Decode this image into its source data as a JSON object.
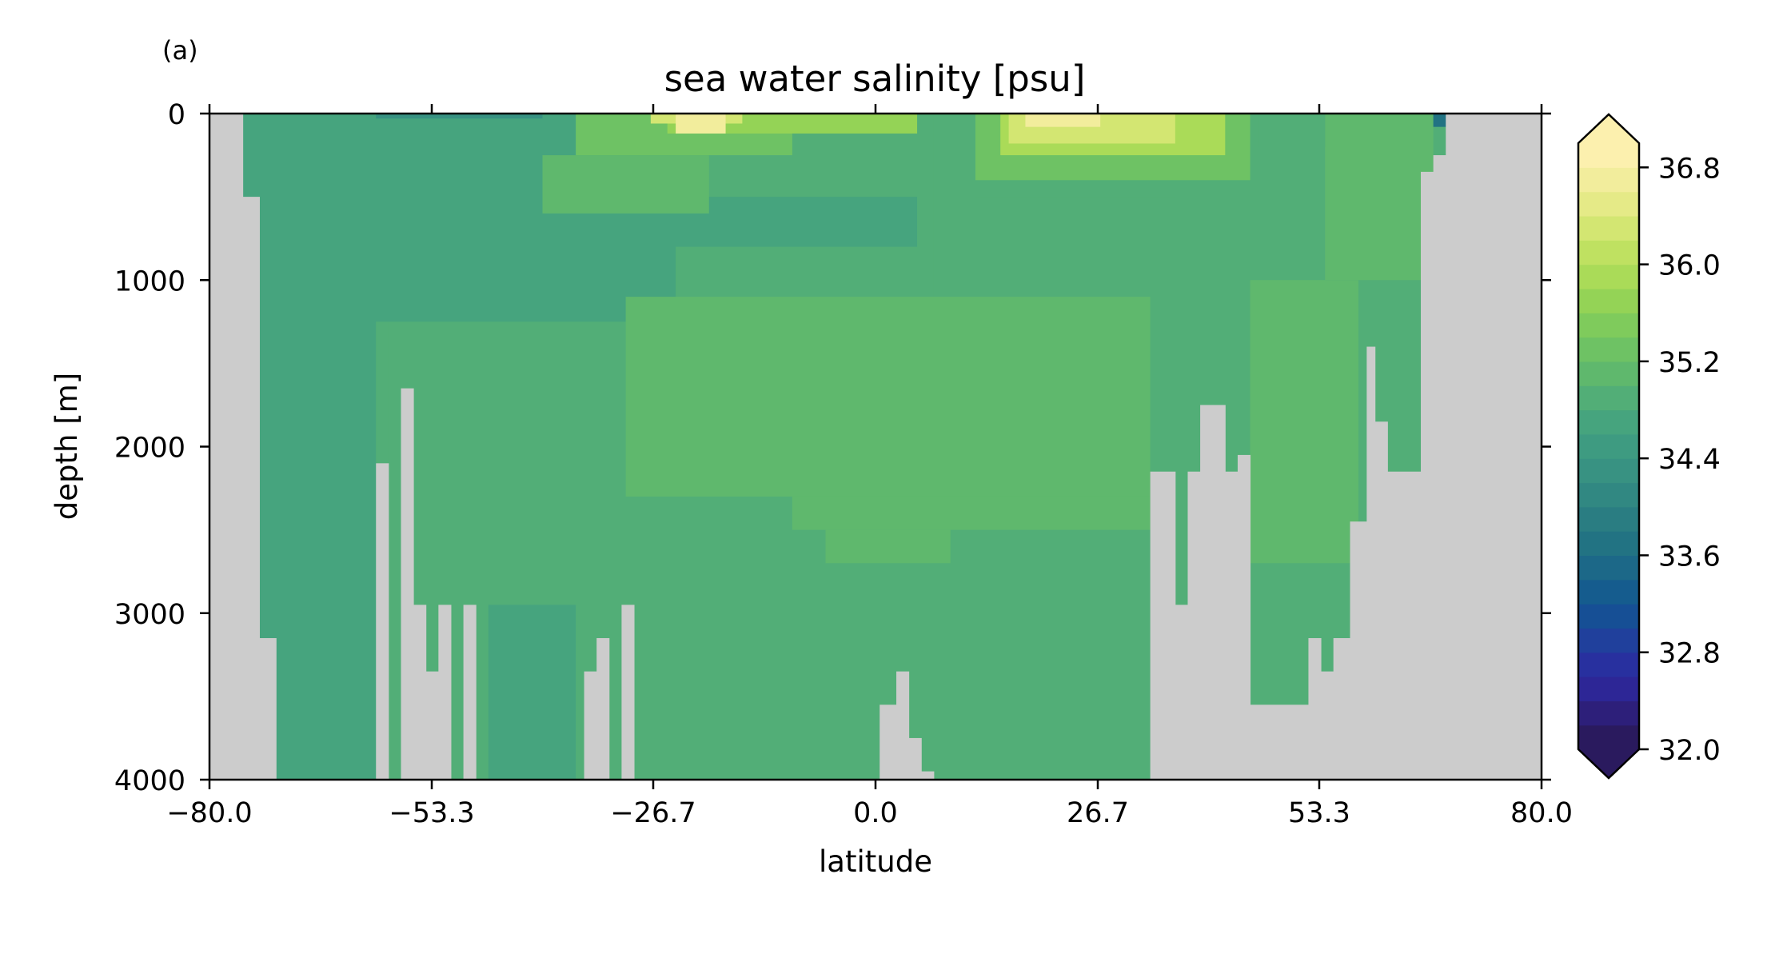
{
  "panel_label": "(a)",
  "chart_data": {
    "type": "heatmap",
    "title": "sea water salinity [psu]",
    "xlabel": "latitude",
    "ylabel": "depth [m]",
    "xlim": [
      -80.0,
      80.0
    ],
    "ylim": [
      4000,
      0
    ],
    "y_inverted": true,
    "xticks": [
      -80.0,
      -53.3,
      -26.7,
      0.0,
      26.7,
      53.3,
      80.0
    ],
    "xtick_labels": [
      "−80.0",
      "−53.3",
      "−26.7",
      "0.0",
      "26.7",
      "53.3",
      "80.0"
    ],
    "yticks": [
      0,
      1000,
      2000,
      3000,
      4000
    ],
    "ytick_labels": [
      "0",
      "1000",
      "2000",
      "3000",
      "4000"
    ],
    "land_color": "#cccccc",
    "colorbar": {
      "min": 32.0,
      "max": 37.0,
      "step": 0.2,
      "extend": "both",
      "ticks": [
        32.0,
        32.8,
        33.6,
        34.4,
        35.2,
        36.0,
        36.8
      ],
      "tick_labels": [
        "32.0",
        "32.8",
        "33.6",
        "34.4",
        "35.2",
        "36.0",
        "36.8"
      ],
      "colors": [
        "#2a1a5e",
        "#2d1f7a",
        "#2d2696",
        "#28309f",
        "#20409c",
        "#164f95",
        "#155c8e",
        "#1c6888",
        "#227383",
        "#2a7d82",
        "#318882",
        "#389282",
        "#3e9b81",
        "#46a47e",
        "#52ae77",
        "#5fb86d",
        "#6ec264",
        "#7fcb5c",
        "#94d356",
        "#aadb58",
        "#bfe161",
        "#d3e672",
        "#e5ea87",
        "#f2ed9c",
        "#fcf0ae"
      ],
      "under_color": "#2a1a5e",
      "over_color": "#fcf0ae"
    },
    "land_bottom": [
      {
        "x": [
          -80.0,
          -76.0
        ],
        "depth": 0
      },
      {
        "x": [
          -76.0,
          -74.0
        ],
        "depth": 500
      },
      {
        "x": [
          -74.0,
          -72.0
        ],
        "depth": 3150
      },
      {
        "x": [
          -60.0,
          -58.5
        ],
        "depth": 2100
      },
      {
        "x": [
          -57.0,
          -55.5
        ],
        "depth": 1650
      },
      {
        "x": [
          -55.5,
          -54.0
        ],
        "depth": 2950
      },
      {
        "x": [
          -54.0,
          -52.5
        ],
        "depth": 3350
      },
      {
        "x": [
          -52.5,
          -51.0
        ],
        "depth": 2950
      },
      {
        "x": [
          -49.5,
          -48.0
        ],
        "depth": 2950
      },
      {
        "x": [
          -35.0,
          -33.5
        ],
        "depth": 3350
      },
      {
        "x": [
          -33.5,
          -32.0
        ],
        "depth": 3150
      },
      {
        "x": [
          -30.5,
          -29.0
        ],
        "depth": 2950
      },
      {
        "x": [
          0.5,
          2.5
        ],
        "depth": 3550
      },
      {
        "x": [
          2.5,
          4.0
        ],
        "depth": 3350
      },
      {
        "x": [
          4.0,
          5.5
        ],
        "depth": 3750
      },
      {
        "x": [
          5.5,
          7.0
        ],
        "depth": 3950
      },
      {
        "x": [
          33.0,
          36.0
        ],
        "depth": 2150
      },
      {
        "x": [
          36.0,
          37.5
        ],
        "depth": 2950
      },
      {
        "x": [
          37.5,
          39.0
        ],
        "depth": 2150
      },
      {
        "x": [
          39.0,
          40.5
        ],
        "depth": 1750
      },
      {
        "x": [
          40.5,
          42.0
        ],
        "depth": 1750
      },
      {
        "x": [
          42.0,
          43.5
        ],
        "depth": 2150
      },
      {
        "x": [
          43.5,
          45.0
        ],
        "depth": 2050
      },
      {
        "x": [
          45.0,
          52.0
        ],
        "depth": 3550
      },
      {
        "x": [
          52.0,
          53.5
        ],
        "depth": 3150
      },
      {
        "x": [
          53.5,
          55.0
        ],
        "depth": 3350
      },
      {
        "x": [
          55.0,
          57.0
        ],
        "depth": 3150
      },
      {
        "x": [
          57.0,
          59.0
        ],
        "depth": 2450
      },
      {
        "x": [
          59.0,
          60.0
        ],
        "depth": 1400
      },
      {
        "x": [
          60.0,
          61.5
        ],
        "depth": 1850
      },
      {
        "x": [
          61.5,
          65.5
        ],
        "depth": 2150
      },
      {
        "x": [
          65.5,
          67.0
        ],
        "depth": 350
      },
      {
        "x": [
          67.0,
          68.5
        ],
        "depth": 250
      },
      {
        "x": [
          68.5,
          80.0
        ],
        "depth": 0
      }
    ],
    "salinity_regions": [
      {
        "x": [
          -76.0,
          80.0
        ],
        "depth": [
          0,
          4000
        ],
        "value": 34.9
      },
      {
        "x": [
          -76.0,
          -60.0
        ],
        "depth": [
          0,
          4000
        ],
        "value": 34.7
      },
      {
        "x": [
          -58.5,
          -41.0
        ],
        "depth": [
          1000,
          4000
        ],
        "value": 34.9
      },
      {
        "x": [
          -46.5,
          -36.0
        ],
        "depth": [
          2950,
          4000
        ],
        "value": 34.7
      },
      {
        "x": [
          -76.0,
          -24.0
        ],
        "depth": [
          0,
          1250
        ],
        "value": 34.7
      },
      {
        "x": [
          -24.0,
          7.0
        ],
        "depth": [
          0,
          1100
        ],
        "value": 34.8
      },
      {
        "x": [
          -30.0,
          5.0
        ],
        "depth": [
          500,
          800
        ],
        "value": 34.7
      },
      {
        "x": [
          -30.0,
          33.0
        ],
        "depth": [
          1100,
          2300
        ],
        "value": 35.0
      },
      {
        "x": [
          -10.0,
          33.0
        ],
        "depth": [
          2300,
          2500
        ],
        "value": 35.0
      },
      {
        "x": [
          -6.0,
          9.0
        ],
        "depth": [
          2500,
          2700
        ],
        "value": 35.0
      },
      {
        "x": [
          45.0,
          58.0
        ],
        "depth": [
          1000,
          2700
        ],
        "value": 35.0
      },
      {
        "x": [
          12.0,
          36.0
        ],
        "depth": [
          500,
          1100
        ],
        "value": 34.9
      },
      {
        "x": [
          -40.0,
          -20.0
        ],
        "depth": [
          250,
          600
        ],
        "value": 35.1
      },
      {
        "x": [
          -36.0,
          -10.0
        ],
        "depth": [
          0,
          250
        ],
        "value": 35.3
      },
      {
        "x": [
          -25.0,
          5.0
        ],
        "depth": [
          0,
          120
        ],
        "value": 35.7
      },
      {
        "x": [
          -27.0,
          -16.0
        ],
        "depth": [
          0,
          60
        ],
        "value": 36.3
      },
      {
        "x": [
          -24.0,
          -18.0
        ],
        "depth": [
          0,
          120
        ],
        "value": 36.7
      },
      {
        "x": [
          12.0,
          45.0
        ],
        "depth": [
          0,
          400
        ],
        "value": 35.3
      },
      {
        "x": [
          15.0,
          42.0
        ],
        "depth": [
          0,
          250
        ],
        "value": 35.8
      },
      {
        "x": [
          16.0,
          36.0
        ],
        "depth": [
          0,
          180
        ],
        "value": 36.2
      },
      {
        "x": [
          18.0,
          27.0
        ],
        "depth": [
          0,
          80
        ],
        "value": 36.7
      },
      {
        "x": [
          54.0,
          67.0
        ],
        "depth": [
          0,
          1000
        ],
        "value": 35.1
      },
      {
        "x": [
          46.0,
          54.0
        ],
        "depth": [
          0,
          200
        ],
        "value": 34.9
      },
      {
        "x": [
          67.0,
          69.0
        ],
        "depth": [
          0,
          80
        ],
        "value": 33.7
      },
      {
        "x": [
          -60.0,
          -40.0
        ],
        "depth": [
          0,
          30
        ],
        "value": 34.2
      }
    ]
  }
}
